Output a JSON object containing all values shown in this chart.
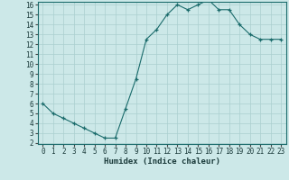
{
  "x": [
    0,
    1,
    2,
    3,
    4,
    5,
    6,
    7,
    8,
    9,
    10,
    11,
    12,
    13,
    14,
    15,
    16,
    17,
    18,
    19,
    20,
    21,
    22,
    23
  ],
  "y": [
    6.0,
    5.0,
    4.5,
    4.0,
    3.5,
    3.0,
    2.5,
    2.5,
    5.5,
    8.5,
    12.5,
    13.5,
    15.0,
    16.0,
    15.5,
    16.0,
    16.5,
    15.5,
    15.5,
    14.0,
    13.0,
    12.5,
    12.5,
    12.5
  ],
  "line_color": "#1a6b6b",
  "marker_color": "#1a6b6b",
  "bg_color": "#cce8e8",
  "grid_color": "#aacfcf",
  "xlabel": "Humidex (Indice chaleur)",
  "ylim": [
    2,
    16
  ],
  "xlim": [
    -0.5,
    23.5
  ],
  "yticks": [
    2,
    3,
    4,
    5,
    6,
    7,
    8,
    9,
    10,
    11,
    12,
    13,
    14,
    15,
    16
  ],
  "xticks": [
    0,
    1,
    2,
    3,
    4,
    5,
    6,
    7,
    8,
    9,
    10,
    11,
    12,
    13,
    14,
    15,
    16,
    17,
    18,
    19,
    20,
    21,
    22,
    23
  ],
  "tick_fontsize": 5.5,
  "label_fontsize": 6.5
}
